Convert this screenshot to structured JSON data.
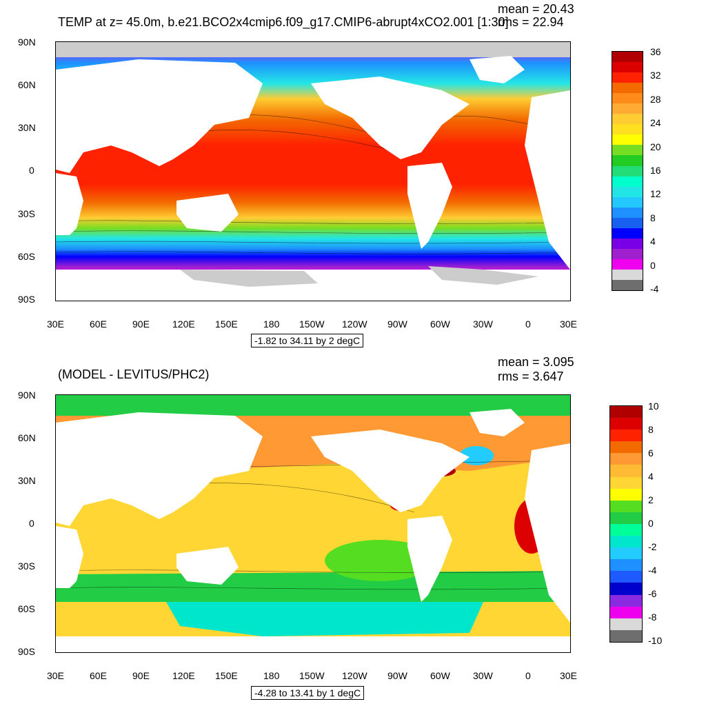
{
  "top": {
    "title": "TEMP at z=  45.0m, b.e21.BCO2x4cmip6.f09_g17.CMIP6-abrupt4xCO2.001 [1:30]",
    "mean_label": "mean = 20.43",
    "rms_label": "rms = 22.94",
    "range_label": "-1.82 to 34.11 by 2 degC",
    "colorbar_labels": [
      "36",
      "32",
      "28",
      "24",
      "20",
      "16",
      "12",
      "8",
      "4",
      "0",
      "-4"
    ],
    "colorbar_colors": [
      "#b00000",
      "#dd0000",
      "#ff2200",
      "#f26a00",
      "#ff8c1a",
      "#ffaa33",
      "#ffcc33",
      "#ffe020",
      "#ffff00",
      "#77dd22",
      "#22cc22",
      "#22dd77",
      "#00ffcc",
      "#22e6e6",
      "#22c8ff",
      "#1e90ff",
      "#1860f0",
      "#0000ff",
      "#7a00e6",
      "#a020d0",
      "#ee00ee",
      "#d9d9d9",
      "#6e6e6e"
    ]
  },
  "bottom": {
    "title": "(MODEL - LEVITUS/PHC2)",
    "mean_label": "mean = 3.095",
    "rms_label": "rms = 3.647",
    "range_label": "-4.28 to 13.41 by 1 degC",
    "colorbar_labels": [
      "10",
      "8",
      "6",
      "4",
      "2",
      "0",
      "-2",
      "-4",
      "-6",
      "-8",
      "-10"
    ],
    "colorbar_colors": [
      "#b00000",
      "#dd0000",
      "#ff2200",
      "#f26a00",
      "#ff9933",
      "#ffbb33",
      "#ffd633",
      "#ffff00",
      "#55dd22",
      "#22cc44",
      "#00ff99",
      "#00e6cc",
      "#22ccff",
      "#1e90ff",
      "#1e5aff",
      "#0000cc",
      "#8a2be2",
      "#ee00ee",
      "#d9d9d9",
      "#6e6e6e"
    ]
  },
  "axes": {
    "lat_labels": [
      "90N",
      "60N",
      "30N",
      "0",
      "30S",
      "60S",
      "90S"
    ],
    "lon_labels": [
      "30E",
      "60E",
      "90E",
      "120E",
      "150E",
      "180",
      "150W",
      "120W",
      "90W",
      "60W",
      "30W",
      "0",
      "30E"
    ]
  },
  "map_data": {
    "projection": "cylindrical equidistant",
    "lat_range": [
      -90,
      90
    ],
    "lon_range": [
      30,
      390
    ],
    "land_color": "#ffffff",
    "ice_color": "#cccccc"
  }
}
